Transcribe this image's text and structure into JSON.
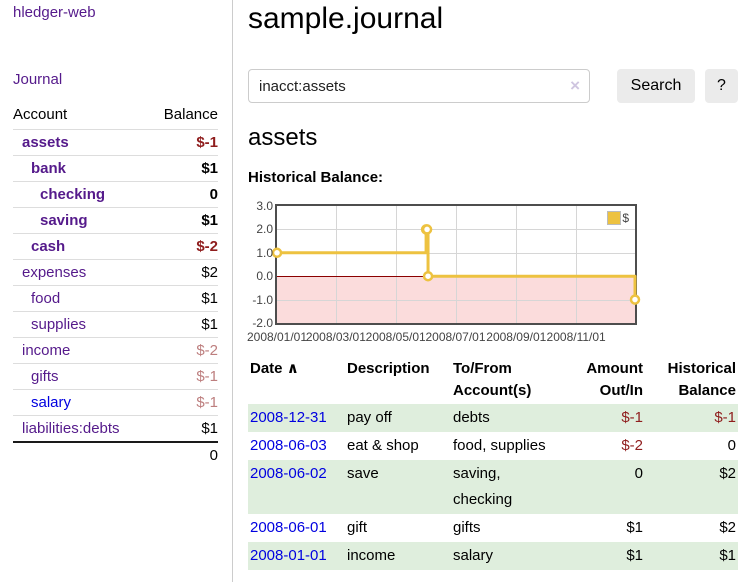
{
  "sidebar": {
    "app_title": "hledger-web",
    "nav": {
      "journal_label": "Journal"
    },
    "accounts_table": {
      "headers": {
        "account": "Account",
        "balance": "Balance"
      },
      "rows": [
        {
          "name": "assets",
          "balance": "$-1",
          "depth": 1,
          "bold": true,
          "link": "visited"
        },
        {
          "name": "bank",
          "balance": "$1",
          "depth": 2,
          "bold": true,
          "link": "visited"
        },
        {
          "name": "checking",
          "balance": "0",
          "depth": 3,
          "bold": true,
          "link": "visited"
        },
        {
          "name": "saving",
          "balance": "$1",
          "depth": 3,
          "bold": true,
          "link": "visited"
        },
        {
          "name": "cash",
          "balance": "$-2",
          "depth": 2,
          "bold": true,
          "link": "visited"
        },
        {
          "name": "expenses",
          "balance": "$2",
          "depth": 1,
          "bold": false,
          "link": "visited"
        },
        {
          "name": "food",
          "balance": "$1",
          "depth": 2,
          "bold": false,
          "link": "visited"
        },
        {
          "name": "supplies",
          "balance": "$1",
          "depth": 2,
          "bold": false,
          "link": "visited"
        },
        {
          "name": "income",
          "balance": "$-2",
          "depth": 1,
          "bold": false,
          "link": "visited"
        },
        {
          "name": "gifts",
          "balance": "$-1",
          "depth": 2,
          "bold": false,
          "link": "visited"
        },
        {
          "name": "salary",
          "balance": "$-1",
          "depth": 2,
          "bold": false,
          "link": "unvisited"
        },
        {
          "name": "liabilities:debts",
          "balance": "$1",
          "depth": 1,
          "bold": false,
          "link": "visited"
        }
      ],
      "total": "0"
    }
  },
  "header": {
    "title": "sample.journal"
  },
  "search": {
    "value": "inacct:assets",
    "clear_icon": "×",
    "button_label": "Search",
    "help_label": "?"
  },
  "account_page": {
    "title": "assets",
    "chart_label": "Historical Balance:"
  },
  "chart_data": {
    "type": "line",
    "style": "step-after",
    "title": "Historical Balance",
    "series": [
      {
        "name": "$",
        "color": "#edc240",
        "x": [
          "2008-01-01",
          "2008-06-01",
          "2008-06-02",
          "2008-06-03",
          "2008-12-31"
        ],
        "y": [
          1,
          2,
          2,
          0,
          -1
        ]
      }
    ],
    "xlim": [
      "2008-01-01",
      "2008-12-31"
    ],
    "ylim": [
      -2,
      3
    ],
    "x_ticks": [
      "2008/01/01",
      "2008/03/01",
      "2008/05/01",
      "2008/07/01",
      "2008/09/01",
      "2008/11/01"
    ],
    "y_ticks": [
      3.0,
      2.0,
      1.0,
      0.0,
      -1.0,
      -2.0
    ],
    "legend": {
      "label": "$",
      "position": "top-right"
    },
    "grid": true,
    "colors": {
      "line": "#edc240",
      "marker_fill": "#ffffff",
      "negative_region_fill": "#fbdcdc",
      "zero_line": "#8b0000",
      "grid_line": "#d6d6d6",
      "plot_border": "#4d4d4d"
    }
  },
  "register": {
    "headers": {
      "date": "Date",
      "sort_indicator": "∧",
      "description": "Description",
      "accounts": "To/From Account(s)",
      "amount": "Amount Out/In",
      "balance": "Historical Balance"
    },
    "rows": [
      {
        "date": "2008-12-31",
        "description": "pay off",
        "accounts": "debts",
        "amount": "$-1",
        "balance": "$-1"
      },
      {
        "date": "2008-06-03",
        "description": "eat & shop",
        "accounts": "food, supplies",
        "amount": "$-2",
        "balance": "0"
      },
      {
        "date": "2008-06-02",
        "description": "save",
        "accounts": "saving, checking",
        "amount": "0",
        "balance": "$2"
      },
      {
        "date": "2008-06-01",
        "description": "gift",
        "accounts": "gifts",
        "amount": "$1",
        "balance": "$2"
      },
      {
        "date": "2008-01-01",
        "description": "income",
        "accounts": "salary",
        "amount": "$1",
        "balance": "$1"
      }
    ]
  },
  "colors": {
    "link_visited": "#551a8b",
    "link_unvisited": "#0000e0",
    "negative_strong": "#8f1d1d",
    "negative_weak": "#bd7e7e",
    "row_stripe_green": "#dfeedd",
    "divider": "#cccccc"
  }
}
